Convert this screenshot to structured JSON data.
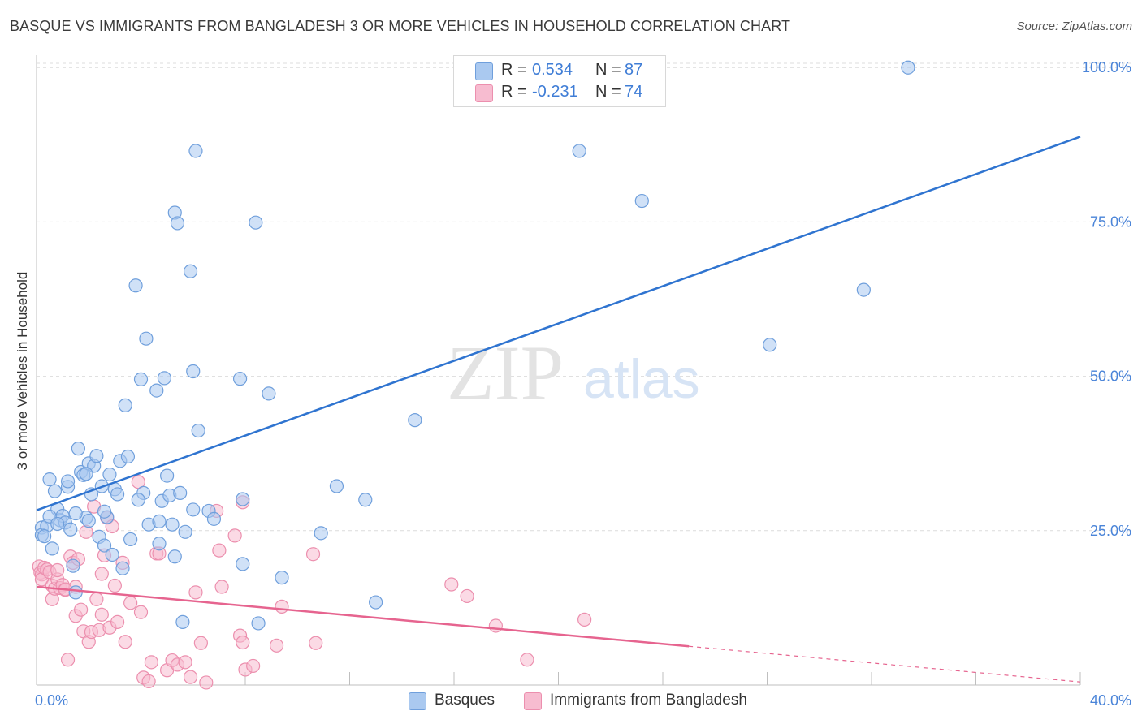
{
  "header": {
    "title": "BASQUE VS IMMIGRANTS FROM BANGLADESH 3 OR MORE VEHICLES IN HOUSEHOLD CORRELATION CHART",
    "source": "Source: ZipAtlas.com"
  },
  "watermark": {
    "zip": "ZIP",
    "atlas": "atlas"
  },
  "legend": {
    "r_label": "R =",
    "n_label": "N =",
    "rows": [
      {
        "r": "0.534",
        "n": "87"
      },
      {
        "r": "-0.231",
        "n": "74"
      }
    ]
  },
  "colors": {
    "blue_fill": "#aac9f0",
    "blue_stroke": "#6f9fdc",
    "blue_line": "#2f74d0",
    "pink_fill": "#f7bcd0",
    "pink_stroke": "#ec8fae",
    "pink_line": "#e6648f",
    "axis_text": "#4a84d8",
    "grid": "#dcdcdc"
  },
  "chart_data": {
    "type": "scatter",
    "title": "BASQUE VS IMMIGRANTS FROM BANGLADESH 3 OR MORE VEHICLES IN HOUSEHOLD CORRELATION CHART",
    "xlabel": "",
    "ylabel": "3 or more Vehicles in Household",
    "xlim": [
      0,
      40
    ],
    "ylim": [
      0,
      102
    ],
    "x_tick_labels": [
      "0.0%",
      "40.0%"
    ],
    "y_ticks": [
      25,
      50,
      75,
      100
    ],
    "y_tick_labels": [
      "25.0%",
      "50.0%",
      "75.0%",
      "100.0%"
    ],
    "grid": true,
    "legend_position": "top-center",
    "series": [
      {
        "name": "Basques",
        "color": "#aac9f0",
        "R": 0.534,
        "N": 87,
        "trend": {
          "x": [
            0,
            40
          ],
          "y": [
            28.3,
            88.8
          ],
          "dashed_from_x": null
        },
        "points": [
          [
            0.2,
            25.5
          ],
          [
            0.2,
            24.3
          ],
          [
            0.4,
            25.8
          ],
          [
            0.5,
            33.3
          ],
          [
            0.6,
            22.1
          ],
          [
            0.7,
            31.4
          ],
          [
            0.8,
            28.5
          ],
          [
            0.9,
            26.7
          ],
          [
            1.0,
            27.4
          ],
          [
            1.1,
            26.3
          ],
          [
            1.2,
            32.1
          ],
          [
            1.3,
            25.2
          ],
          [
            1.4,
            19.3
          ],
          [
            1.5,
            15.0
          ],
          [
            1.6,
            38.3
          ],
          [
            1.7,
            34.5
          ],
          [
            1.8,
            34.0
          ],
          [
            1.9,
            27.1
          ],
          [
            2.0,
            35.9
          ],
          [
            2.1,
            30.9
          ],
          [
            2.2,
            35.5
          ],
          [
            2.3,
            37.1
          ],
          [
            2.4,
            24.0
          ],
          [
            2.5,
            32.2
          ],
          [
            2.6,
            22.6
          ],
          [
            2.7,
            27.2
          ],
          [
            2.8,
            34.1
          ],
          [
            2.9,
            21.1
          ],
          [
            3.0,
            31.7
          ],
          [
            3.1,
            30.9
          ],
          [
            3.2,
            36.3
          ],
          [
            3.3,
            18.9
          ],
          [
            3.4,
            45.3
          ],
          [
            3.5,
            37.0
          ],
          [
            3.6,
            23.6
          ],
          [
            3.8,
            64.7
          ],
          [
            4.0,
            49.5
          ],
          [
            4.1,
            31.1
          ],
          [
            4.2,
            56.1
          ],
          [
            4.3,
            26.0
          ],
          [
            4.6,
            47.7
          ],
          [
            4.7,
            22.9
          ],
          [
            4.8,
            29.8
          ],
          [
            4.9,
            49.7
          ],
          [
            5.0,
            33.9
          ],
          [
            5.1,
            30.7
          ],
          [
            5.2,
            26.0
          ],
          [
            5.3,
            76.5
          ],
          [
            5.4,
            74.8
          ],
          [
            5.5,
            31.1
          ],
          [
            5.6,
            10.2
          ],
          [
            5.7,
            24.8
          ],
          [
            5.9,
            67.0
          ],
          [
            6.0,
            28.4
          ],
          [
            6.0,
            50.8
          ],
          [
            6.1,
            86.5
          ],
          [
            6.2,
            41.2
          ],
          [
            6.6,
            28.2
          ],
          [
            6.8,
            26.9
          ],
          [
            7.8,
            49.6
          ],
          [
            7.9,
            19.6
          ],
          [
            7.9,
            30.1
          ],
          [
            8.4,
            74.9
          ],
          [
            8.5,
            10.0
          ],
          [
            8.9,
            47.2
          ],
          [
            9.4,
            17.4
          ],
          [
            10.9,
            24.6
          ],
          [
            11.5,
            32.2
          ],
          [
            12.6,
            30.0
          ],
          [
            13.0,
            13.4
          ],
          [
            14.5,
            42.9
          ],
          [
            20.8,
            86.5
          ],
          [
            23.2,
            78.4
          ],
          [
            28.1,
            55.1
          ],
          [
            31.7,
            64.0
          ],
          [
            33.4,
            100.0
          ],
          [
            1.5,
            27.8
          ],
          [
            0.3,
            24.1
          ],
          [
            2.0,
            26.6
          ],
          [
            1.9,
            34.2
          ],
          [
            0.5,
            27.3
          ],
          [
            3.9,
            30.0
          ],
          [
            5.3,
            20.8
          ],
          [
            0.8,
            26.1
          ],
          [
            1.2,
            33.0
          ],
          [
            2.6,
            28.1
          ],
          [
            4.7,
            26.5
          ]
        ]
      },
      {
        "name": "Immigrants from Bangladesh",
        "color": "#f7bcd0",
        "R": -0.231,
        "N": 74,
        "trend": {
          "x": [
            0,
            40
          ],
          "y": [
            15.9,
            0.5
          ],
          "dashed_from_x": 25.0
        },
        "points": [
          [
            0.1,
            19.2
          ],
          [
            0.15,
            18.2
          ],
          [
            0.2,
            17.9
          ],
          [
            0.2,
            17.1
          ],
          [
            0.3,
            19.0
          ],
          [
            0.4,
            18.7
          ],
          [
            0.5,
            18.3
          ],
          [
            0.6,
            16.1
          ],
          [
            0.6,
            13.9
          ],
          [
            0.7,
            15.6
          ],
          [
            0.8,
            17.1
          ],
          [
            0.9,
            15.7
          ],
          [
            1.0,
            16.2
          ],
          [
            1.1,
            15.4
          ],
          [
            1.2,
            4.1
          ],
          [
            1.3,
            20.8
          ],
          [
            1.4,
            19.8
          ],
          [
            1.5,
            11.2
          ],
          [
            1.5,
            15.9
          ],
          [
            1.6,
            20.4
          ],
          [
            1.7,
            12.2
          ],
          [
            1.8,
            8.7
          ],
          [
            1.9,
            24.8
          ],
          [
            2.0,
            7.0
          ],
          [
            2.1,
            8.6
          ],
          [
            2.2,
            28.9
          ],
          [
            2.3,
            13.9
          ],
          [
            2.4,
            8.9
          ],
          [
            2.5,
            11.4
          ],
          [
            2.6,
            21.0
          ],
          [
            2.7,
            27.1
          ],
          [
            2.8,
            9.3
          ],
          [
            2.9,
            25.7
          ],
          [
            3.0,
            16.1
          ],
          [
            3.1,
            10.2
          ],
          [
            3.3,
            19.8
          ],
          [
            3.4,
            7.0
          ],
          [
            3.6,
            13.3
          ],
          [
            3.9,
            32.9
          ],
          [
            4.0,
            11.8
          ],
          [
            4.1,
            1.2
          ],
          [
            4.3,
            0.6
          ],
          [
            4.4,
            3.7
          ],
          [
            4.6,
            21.3
          ],
          [
            4.7,
            21.3
          ],
          [
            5.0,
            2.4
          ],
          [
            5.2,
            4.0
          ],
          [
            5.4,
            3.3
          ],
          [
            5.7,
            3.7
          ],
          [
            5.9,
            1.3
          ],
          [
            6.1,
            15.0
          ],
          [
            6.3,
            6.8
          ],
          [
            6.5,
            0.4
          ],
          [
            6.9,
            28.2
          ],
          [
            7.0,
            21.8
          ],
          [
            7.1,
            15.9
          ],
          [
            7.6,
            24.2
          ],
          [
            7.8,
            8.0
          ],
          [
            7.9,
            29.6
          ],
          [
            7.9,
            6.9
          ],
          [
            8.0,
            2.5
          ],
          [
            8.3,
            3.1
          ],
          [
            9.2,
            6.4
          ],
          [
            9.4,
            12.7
          ],
          [
            10.6,
            21.2
          ],
          [
            10.7,
            6.8
          ],
          [
            15.9,
            16.3
          ],
          [
            16.5,
            14.4
          ],
          [
            17.6,
            9.6
          ],
          [
            18.8,
            4.1
          ],
          [
            21.0,
            10.6
          ],
          [
            0.8,
            18.6
          ],
          [
            1.1,
            15.5
          ],
          [
            2.5,
            18.0
          ]
        ]
      }
    ]
  },
  "bottom_legend": {
    "items": [
      {
        "label": "Basques"
      },
      {
        "label": "Immigrants from Bangladesh"
      }
    ]
  }
}
